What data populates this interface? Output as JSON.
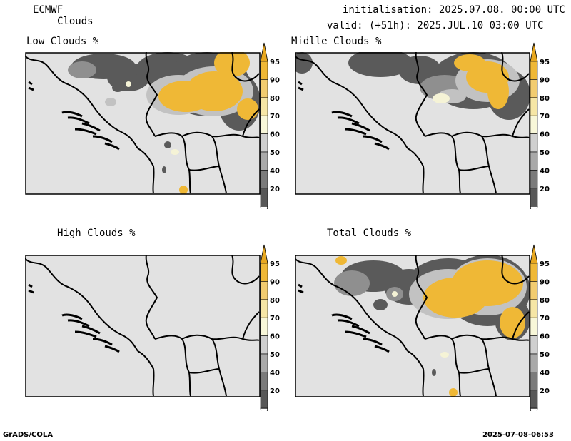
{
  "header": {
    "model": "ECMWF",
    "product": "Clouds",
    "init": "initialisation: 2025.07.08. 00:00 UTC",
    "valid": "valid: (+51h): 2025.JUL.10 03:00 UTC"
  },
  "panels": [
    {
      "title": "Low Clouds %",
      "coverage": "moderate"
    },
    {
      "title": "Midlle Clouds %",
      "coverage": "moderate"
    },
    {
      "title": "High Clouds %",
      "coverage": "none"
    },
    {
      "title": "Total Clouds %",
      "coverage": "high"
    }
  ],
  "colorbar": {
    "levels": [
      "95",
      "90",
      "80",
      "70",
      "60",
      "50",
      "40",
      "20"
    ],
    "colors": {
      "top": "#e8a820",
      "95": "#efb836",
      "90": "#f2cc70",
      "80": "#f6e6a6",
      "70": "#f8f7d9",
      "60": "#cfcfcf",
      "50": "#a9a9a9",
      "40": "#7b7b7b",
      "20": "#585858",
      "bottom": "#ffffff"
    }
  },
  "colors": {
    "land": "#e2e2e2",
    "cloud_dark": "#5a5a5a",
    "cloud_mid": "#8f8f8f",
    "cloud_light": "#c2c2c2",
    "cloud_pale": "#f5f3d6",
    "cloud_yellow": "#efb836",
    "border": "#000000"
  },
  "footer": {
    "left": "GrADS/COLA",
    "right": "2025-07-08-06:53"
  }
}
